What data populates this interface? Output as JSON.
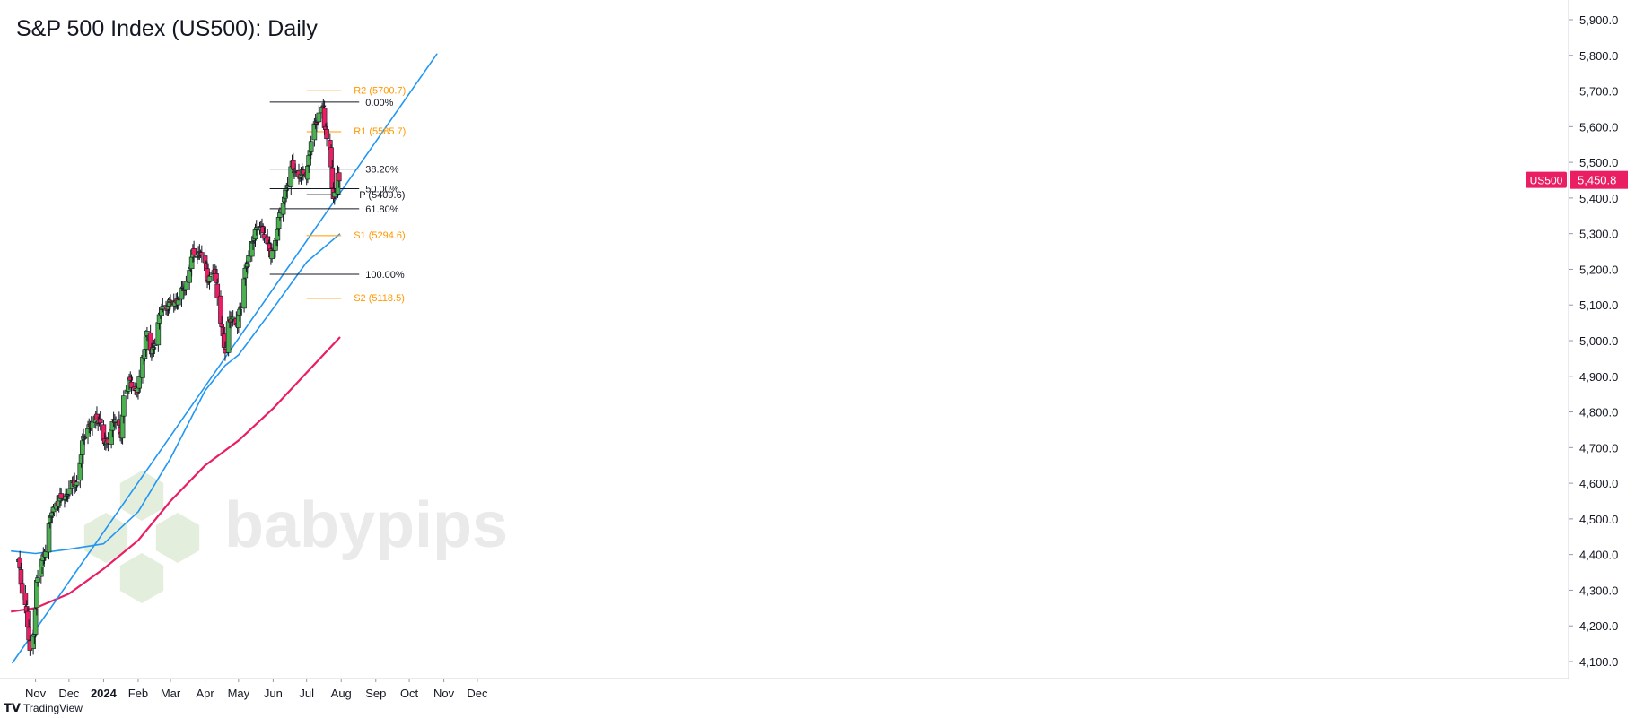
{
  "header": {
    "title": "S&P 500 Index (US500): Daily"
  },
  "watermark": {
    "text": "babypips"
  },
  "footer": {
    "brand": "TradingView",
    "logo_icon": "tradingview-logo-icon"
  },
  "chart_data": {
    "type": "candlestick",
    "title": "S&P 500 Index (US500): Daily",
    "symbol": "US500",
    "last_price": "5,450.8",
    "colors": {
      "up": "#4caf50",
      "down": "#e91e63",
      "ma_fast": "#2196f3",
      "ma_slow": "#e91e63",
      "trendline": "#2196f3",
      "pivot": "#ff9800",
      "fib": "#131722"
    },
    "ylim": [
      4100,
      5900
    ],
    "y_ticks": [
      "4,100.0",
      "4,200.0",
      "4,300.0",
      "4,400.0",
      "4,500.0",
      "4,600.0",
      "4,700.0",
      "4,800.0",
      "4,900.0",
      "5,000.0",
      "5,100.0",
      "5,200.0",
      "5,300.0",
      "5,400.0",
      "5,500.0",
      "5,600.0",
      "5,700.0",
      "5,800.0",
      "5,900.0"
    ],
    "x_ticks": [
      {
        "label": "Nov",
        "date": "2023-11-01"
      },
      {
        "label": "Dec",
        "date": "2023-12-01"
      },
      {
        "label": "2024",
        "date": "2024-01-01",
        "bold": true
      },
      {
        "label": "Feb",
        "date": "2024-02-01"
      },
      {
        "label": "Mar",
        "date": "2024-03-01"
      },
      {
        "label": "Apr",
        "date": "2024-04-01"
      },
      {
        "label": "May",
        "date": "2024-05-01"
      },
      {
        "label": "Jun",
        "date": "2024-06-01"
      },
      {
        "label": "Jul",
        "date": "2024-07-01"
      },
      {
        "label": "Aug",
        "date": "2024-08-01"
      },
      {
        "label": "Sep",
        "date": "2024-09-01"
      },
      {
        "label": "Oct",
        "date": "2024-10-01"
      },
      {
        "label": "Nov",
        "date": "2024-11-01"
      },
      {
        "label": "Dec",
        "date": "2024-12-01"
      }
    ],
    "close_path": [
      [
        "2023-10-17",
        4380
      ],
      [
        "2023-10-19",
        4320
      ],
      [
        "2023-10-23",
        4260
      ],
      [
        "2023-10-25",
        4200
      ],
      [
        "2023-10-27",
        4120
      ],
      [
        "2023-10-31",
        4190
      ],
      [
        "2023-11-02",
        4320
      ],
      [
        "2023-11-07",
        4380
      ],
      [
        "2023-11-10",
        4420
      ],
      [
        "2023-11-14",
        4500
      ],
      [
        "2023-11-20",
        4550
      ],
      [
        "2023-11-28",
        4560
      ],
      [
        "2023-12-01",
        4590
      ],
      [
        "2023-12-08",
        4600
      ],
      [
        "2023-12-13",
        4710
      ],
      [
        "2023-12-18",
        4760
      ],
      [
        "2023-12-28",
        4780
      ],
      [
        "2024-01-03",
        4700
      ],
      [
        "2024-01-10",
        4780
      ],
      [
        "2024-01-17",
        4740
      ],
      [
        "2024-01-19",
        4840
      ],
      [
        "2024-01-25",
        4890
      ],
      [
        "2024-01-31",
        4850
      ],
      [
        "2024-02-05",
        4950
      ],
      [
        "2024-02-09",
        5020
      ],
      [
        "2024-02-13",
        4960
      ],
      [
        "2024-02-22",
        5090
      ],
      [
        "2024-02-29",
        5100
      ],
      [
        "2024-03-06",
        5110
      ],
      [
        "2024-03-14",
        5150
      ],
      [
        "2024-03-21",
        5240
      ],
      [
        "2024-03-28",
        5250
      ],
      [
        "2024-04-04",
        5170
      ],
      [
        "2024-04-09",
        5200
      ],
      [
        "2024-04-15",
        5060
      ],
      [
        "2024-04-19",
        4960
      ],
      [
        "2024-04-23",
        5070
      ],
      [
        "2024-04-30",
        5040
      ],
      [
        "2024-05-06",
        5180
      ],
      [
        "2024-05-15",
        5300
      ],
      [
        "2024-05-21",
        5320
      ],
      [
        "2024-05-24",
        5300
      ],
      [
        "2024-05-30",
        5240
      ],
      [
        "2024-06-03",
        5280
      ],
      [
        "2024-06-07",
        5350
      ],
      [
        "2024-06-12",
        5420
      ],
      [
        "2024-06-18",
        5490
      ],
      [
        "2024-06-24",
        5460
      ],
      [
        "2024-07-01",
        5470
      ],
      [
        "2024-07-05",
        5560
      ],
      [
        "2024-07-10",
        5620
      ],
      [
        "2024-07-16",
        5660
      ],
      [
        "2024-07-17",
        5590
      ],
      [
        "2024-07-22",
        5550
      ],
      [
        "2024-07-24",
        5420
      ],
      [
        "2024-07-25",
        5400
      ],
      [
        "2024-07-29",
        5460
      ],
      [
        "2024-07-30",
        5450
      ]
    ],
    "ma_fast": [
      [
        "2023-10-10",
        4410
      ],
      [
        "2023-11-01",
        4403
      ],
      [
        "2023-12-01",
        4415
      ],
      [
        "2024-01-01",
        4430
      ],
      [
        "2024-02-01",
        4520
      ],
      [
        "2024-03-01",
        4670
      ],
      [
        "2024-04-01",
        4860
      ],
      [
        "2024-04-19",
        4930
      ],
      [
        "2024-05-01",
        4960
      ],
      [
        "2024-06-01",
        5090
      ],
      [
        "2024-07-01",
        5220
      ],
      [
        "2024-07-31",
        5300
      ]
    ],
    "ma_slow": [
      [
        "2023-10-10",
        4240
      ],
      [
        "2023-11-01",
        4250
      ],
      [
        "2023-12-01",
        4290
      ],
      [
        "2024-01-01",
        4360
      ],
      [
        "2024-02-01",
        4440
      ],
      [
        "2024-03-01",
        4550
      ],
      [
        "2024-04-01",
        4650
      ],
      [
        "2024-05-01",
        4720
      ],
      [
        "2024-06-01",
        4810
      ],
      [
        "2024-07-01",
        4910
      ],
      [
        "2024-07-31",
        5010
      ]
    ],
    "trendline": {
      "from": [
        "2023-10-11",
        4095
      ],
      "to": [
        "2024-10-26",
        5805
      ]
    },
    "fib_levels": [
      {
        "label": "0.00%",
        "value": 5669
      },
      {
        "label": "38.20%",
        "value": 5481
      },
      {
        "label": "50.00%",
        "value": 5426
      },
      {
        "label": "61.80%",
        "value": 5370
      },
      {
        "label": "100.00%",
        "value": 5186
      }
    ],
    "fib_range": [
      "2024-05-29",
      "2024-08-01"
    ],
    "pivots": [
      {
        "label": "R2 (5700.7)",
        "value": 5700.7
      },
      {
        "label": "R1 (5585.7)",
        "value": 5585.7
      },
      {
        "label": "P (5409.6)",
        "value": 5409.6
      },
      {
        "label": "S1 (5294.6)",
        "value": 5294.6
      },
      {
        "label": "S2 (5118.5)",
        "value": 5118.5
      }
    ],
    "pivot_range": [
      "2024-07-01",
      "2024-08-01"
    ]
  }
}
